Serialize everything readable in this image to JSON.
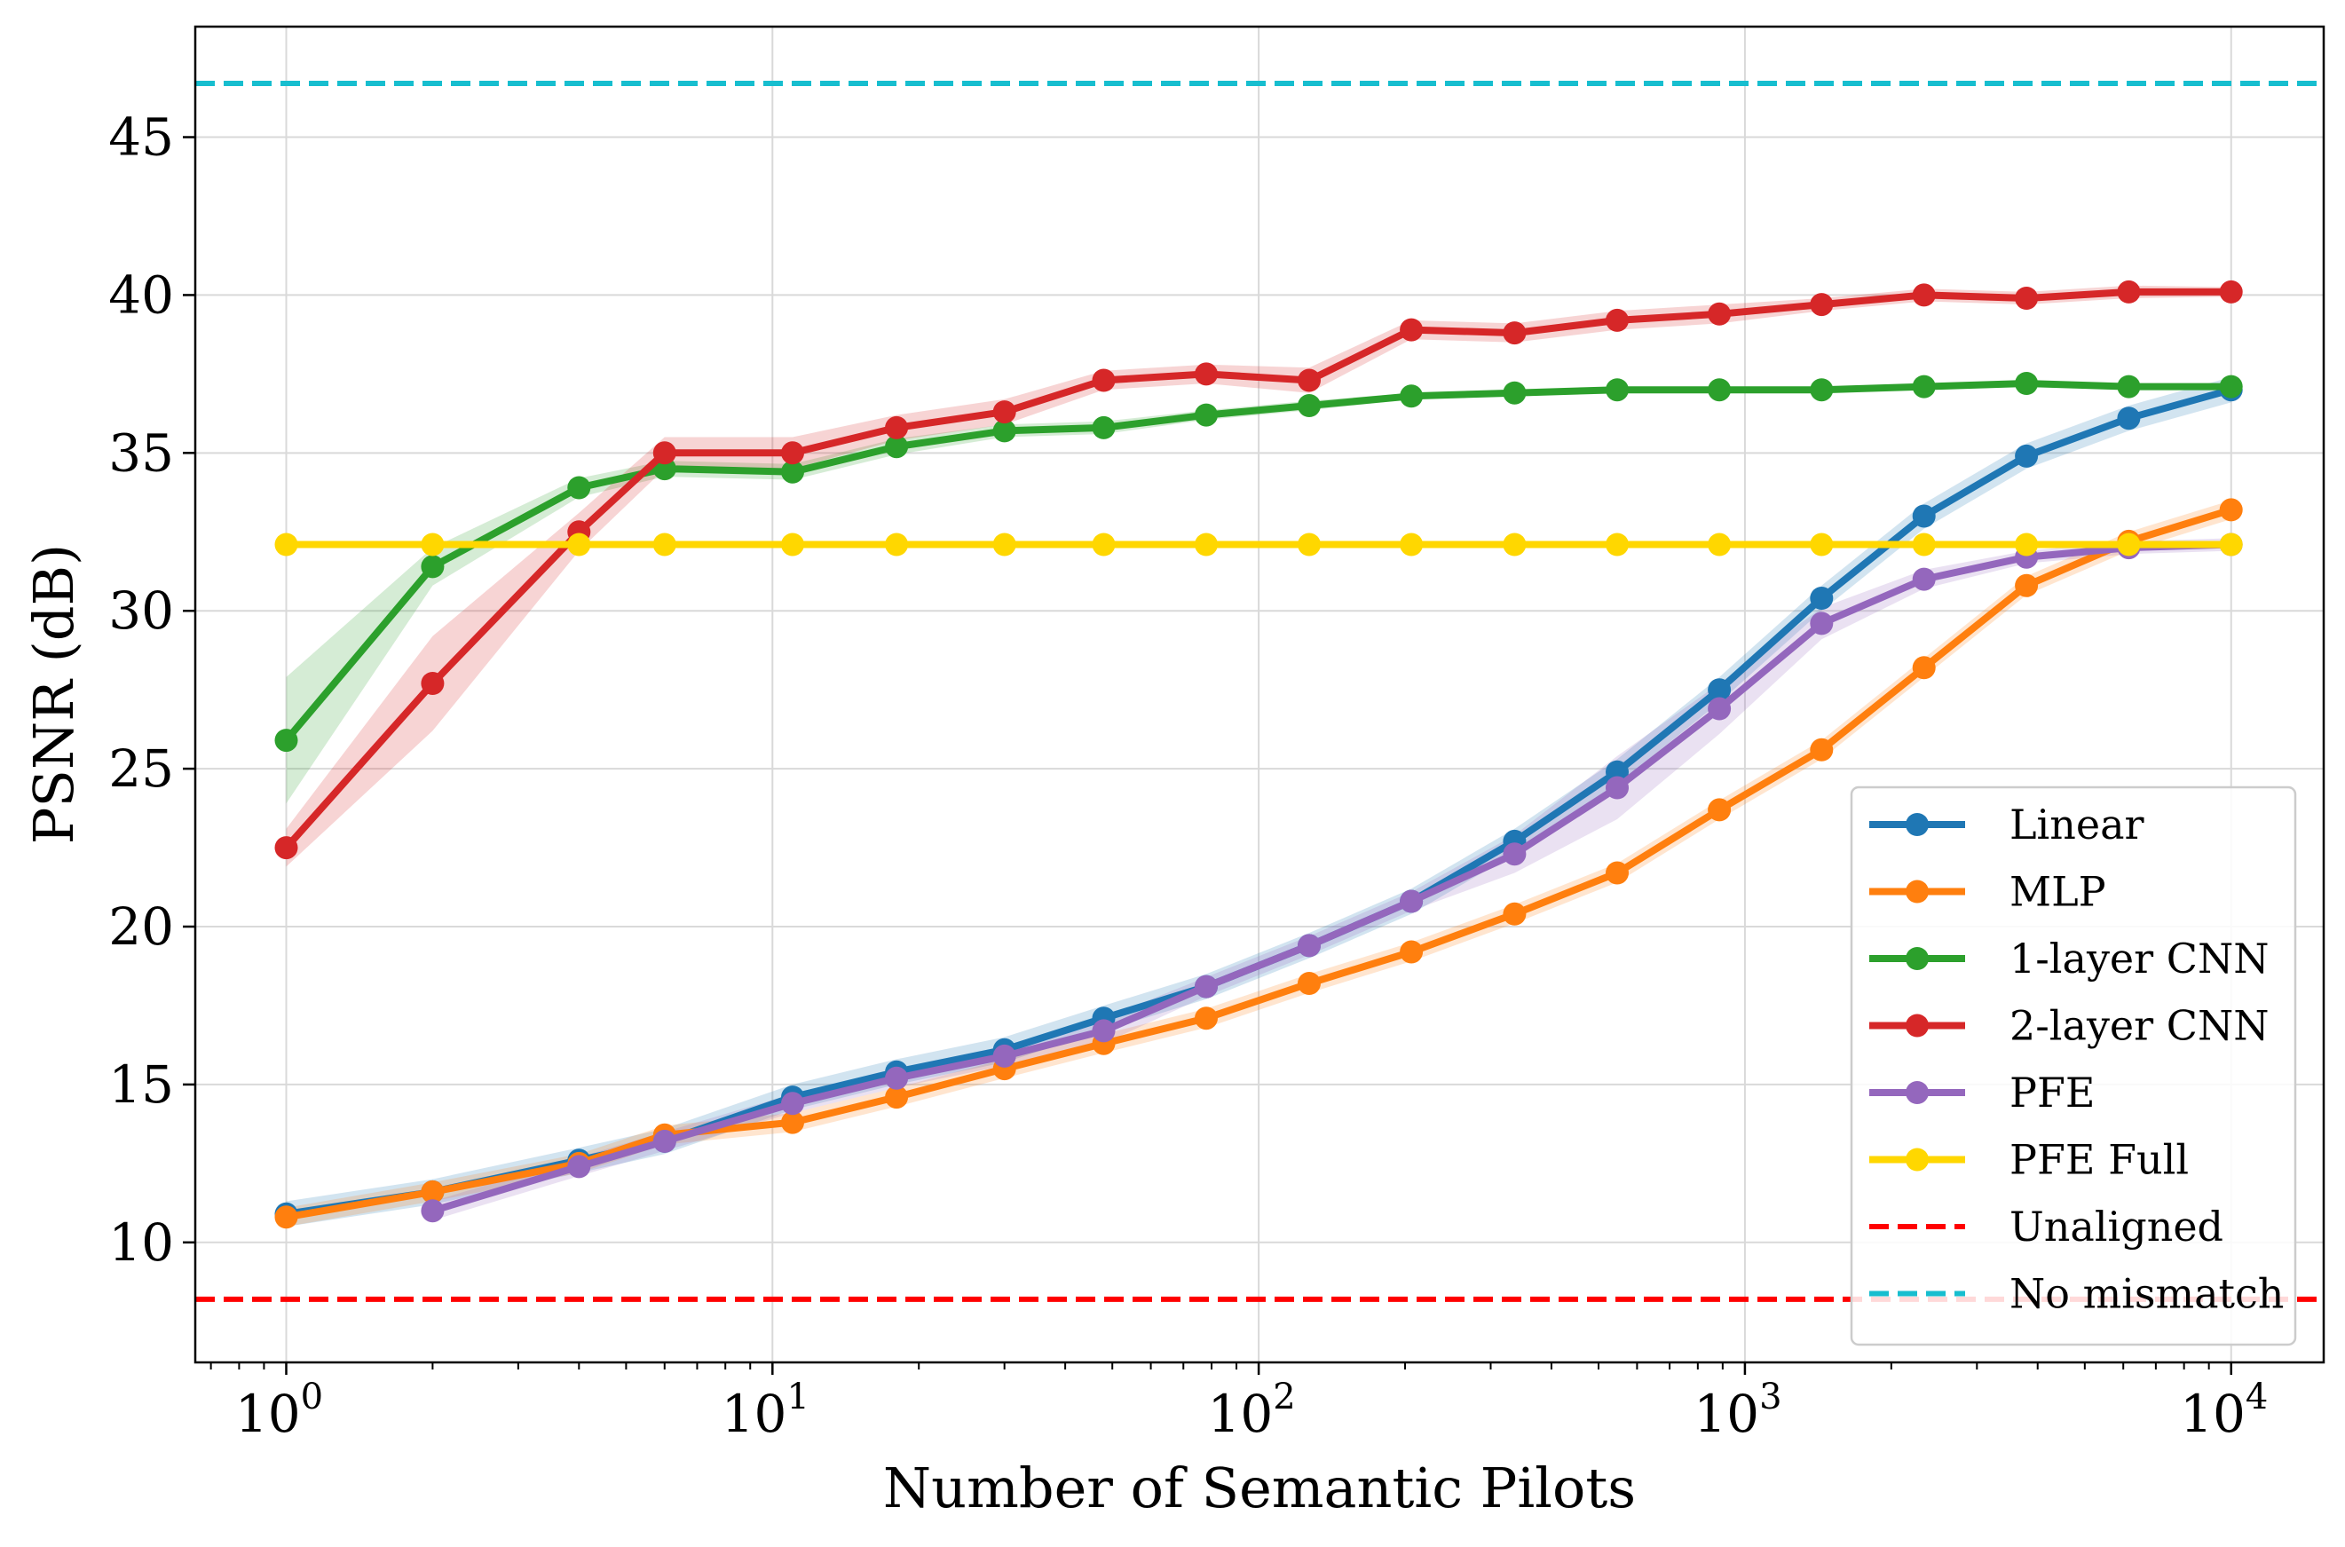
{
  "chart_data": {
    "type": "line",
    "title": "",
    "xlabel": "Number of Semantic Pilots",
    "ylabel": "PSNR (dB)",
    "xscale": "log",
    "xlim": [
      0.65,
      15500
    ],
    "ylim": [
      6.2,
      48.5
    ],
    "grid": true,
    "legend_position": "lower-right",
    "x_ticks": [
      {
        "value": 1,
        "base": "10",
        "exp": "0"
      },
      {
        "value": 10,
        "base": "10",
        "exp": "1"
      },
      {
        "value": 100,
        "base": "10",
        "exp": "2"
      },
      {
        "value": 1000,
        "base": "10",
        "exp": "3"
      },
      {
        "value": 10000,
        "base": "10",
        "exp": "4"
      }
    ],
    "y_ticks": [
      {
        "value": 10,
        "label": "10"
      },
      {
        "value": 15,
        "label": "15"
      },
      {
        "value": 20,
        "label": "20"
      },
      {
        "value": 25,
        "label": "25"
      },
      {
        "value": 30,
        "label": "30"
      },
      {
        "value": 35,
        "label": "35"
      },
      {
        "value": 40,
        "label": "40"
      },
      {
        "value": 45,
        "label": "45"
      }
    ],
    "series": [
      {
        "name": "Linear",
        "color": "#1f77b4",
        "x": [
          1,
          2,
          4,
          6,
          11,
          18,
          30,
          48,
          78,
          127,
          206,
          336,
          546,
          886,
          1438,
          2335,
          3793,
          6158,
          10000
        ],
        "y": [
          10.9,
          11.6,
          12.6,
          13.2,
          14.6,
          15.4,
          16.1,
          17.1,
          18.1,
          19.4,
          20.8,
          22.7,
          24.9,
          27.5,
          30.4,
          33.0,
          34.9,
          36.1,
          37.0
        ],
        "band": 0.4
      },
      {
        "name": "MLP",
        "color": "#ff7f0e",
        "x": [
          1,
          2,
          4,
          6,
          11,
          18,
          30,
          48,
          78,
          127,
          206,
          336,
          546,
          886,
          1438,
          2335,
          3793,
          6158,
          10000
        ],
        "y": [
          10.8,
          11.6,
          12.5,
          13.4,
          13.8,
          14.6,
          15.5,
          16.3,
          17.1,
          18.2,
          19.2,
          20.4,
          21.7,
          23.7,
          25.6,
          28.2,
          30.8,
          32.2,
          33.2
        ],
        "band": 0.3
      },
      {
        "name": "1-layer CNN",
        "color": "#2ca02c",
        "x": [
          1,
          2,
          4,
          6,
          11,
          18,
          30,
          48,
          78,
          127,
          206,
          336,
          546,
          886,
          1438,
          2335,
          3793,
          6158,
          10000
        ],
        "y": [
          25.9,
          31.4,
          33.9,
          34.5,
          34.4,
          35.2,
          35.7,
          35.8,
          36.2,
          36.5,
          36.8,
          36.9,
          37.0,
          37.0,
          37.0,
          37.1,
          37.2,
          37.1,
          37.1
        ],
        "band": [
          2.0,
          0.6,
          0.3,
          0.25,
          0.25,
          0.25,
          0.2,
          0.2,
          0.15,
          0.15,
          0.1,
          0.1,
          0.1,
          0.1,
          0.1,
          0.1,
          0.1,
          0.1,
          0.1
        ]
      },
      {
        "name": "2-layer CNN",
        "color": "#d62728",
        "x": [
          1,
          2,
          4,
          6,
          11,
          18,
          30,
          48,
          78,
          127,
          206,
          336,
          546,
          886,
          1438,
          2335,
          3793,
          6158,
          10000
        ],
        "y": [
          22.5,
          27.7,
          32.5,
          35.0,
          35.0,
          35.8,
          36.3,
          37.3,
          37.5,
          37.3,
          38.9,
          38.8,
          39.2,
          39.4,
          39.7,
          40.0,
          39.9,
          40.1,
          40.1
        ],
        "band": [
          0.6,
          1.5,
          0.6,
          0.5,
          0.5,
          0.4,
          0.4,
          0.3,
          0.3,
          0.4,
          0.3,
          0.3,
          0.3,
          0.3,
          0.2,
          0.2,
          0.2,
          0.2,
          0.15
        ]
      },
      {
        "name": "PFE",
        "color": "#9467bd",
        "x": [
          2,
          4,
          6,
          11,
          18,
          30,
          48,
          78,
          127,
          206,
          336,
          546,
          886,
          1438,
          2335,
          3793,
          6158,
          10000
        ],
        "y": [
          11.0,
          12.4,
          13.2,
          14.4,
          15.2,
          15.9,
          16.7,
          18.1,
          19.4,
          20.8,
          22.3,
          24.4,
          26.9,
          29.6,
          31.0,
          31.7,
          32.0,
          32.1
        ],
        "band": [
          0.3,
          0.3,
          0.3,
          0.3,
          0.3,
          0.3,
          0.4,
          0.3,
          0.3,
          0.3,
          0.6,
          1.0,
          0.8,
          0.5,
          0.3,
          0.2,
          0.2,
          0.2
        ]
      },
      {
        "name": "PFE Full",
        "color": "#ffd700",
        "x": [
          1,
          2,
          4,
          6,
          11,
          18,
          30,
          48,
          78,
          127,
          206,
          336,
          546,
          886,
          1438,
          2335,
          3793,
          6158,
          10000
        ],
        "y": [
          32.1,
          32.1,
          32.1,
          32.1,
          32.1,
          32.1,
          32.1,
          32.1,
          32.1,
          32.1,
          32.1,
          32.1,
          32.1,
          32.1,
          32.1,
          32.1,
          32.1,
          32.1,
          32.1
        ],
        "band": 0
      }
    ],
    "reference_lines": [
      {
        "name": "Unaligned",
        "color": "#ff0000",
        "y": 8.2,
        "style": "dashed"
      },
      {
        "name": "No mismatch",
        "color": "#17becf",
        "y": 46.7,
        "style": "dashed"
      }
    ]
  }
}
